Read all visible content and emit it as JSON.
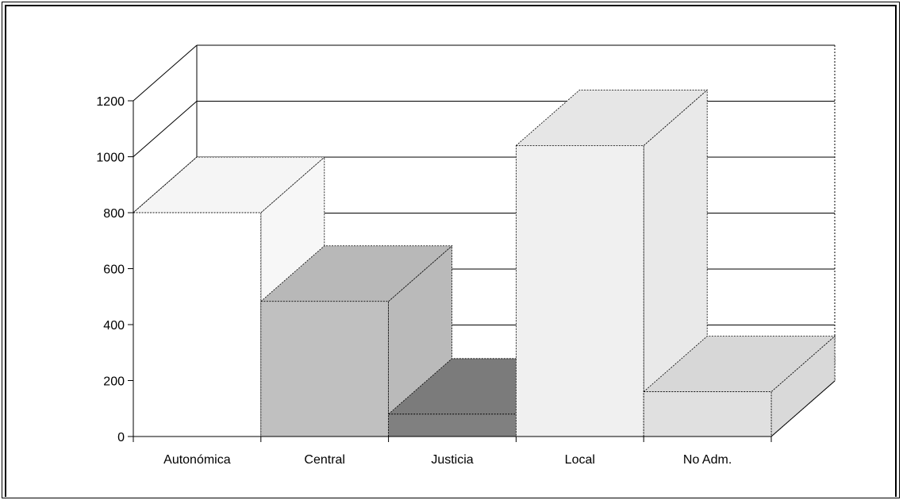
{
  "chart_data": {
    "type": "bar",
    "title": "",
    "xlabel": "",
    "ylabel": "",
    "categories": [
      "Autonómica",
      "Central",
      "Justicia",
      "Local",
      "No Adm."
    ],
    "values": [
      800,
      483,
      80,
      1040,
      160
    ],
    "colors": [
      "#ffffff",
      "#c0c0c0",
      "#808080",
      "#f0f0f0",
      "#e0e0e0"
    ],
    "ylim": [
      0,
      1200
    ],
    "yticks": [
      "0",
      "200",
      "400",
      "600",
      "800",
      "1000",
      "1200"
    ],
    "grid": true,
    "legend": "none",
    "style": "3d"
  }
}
